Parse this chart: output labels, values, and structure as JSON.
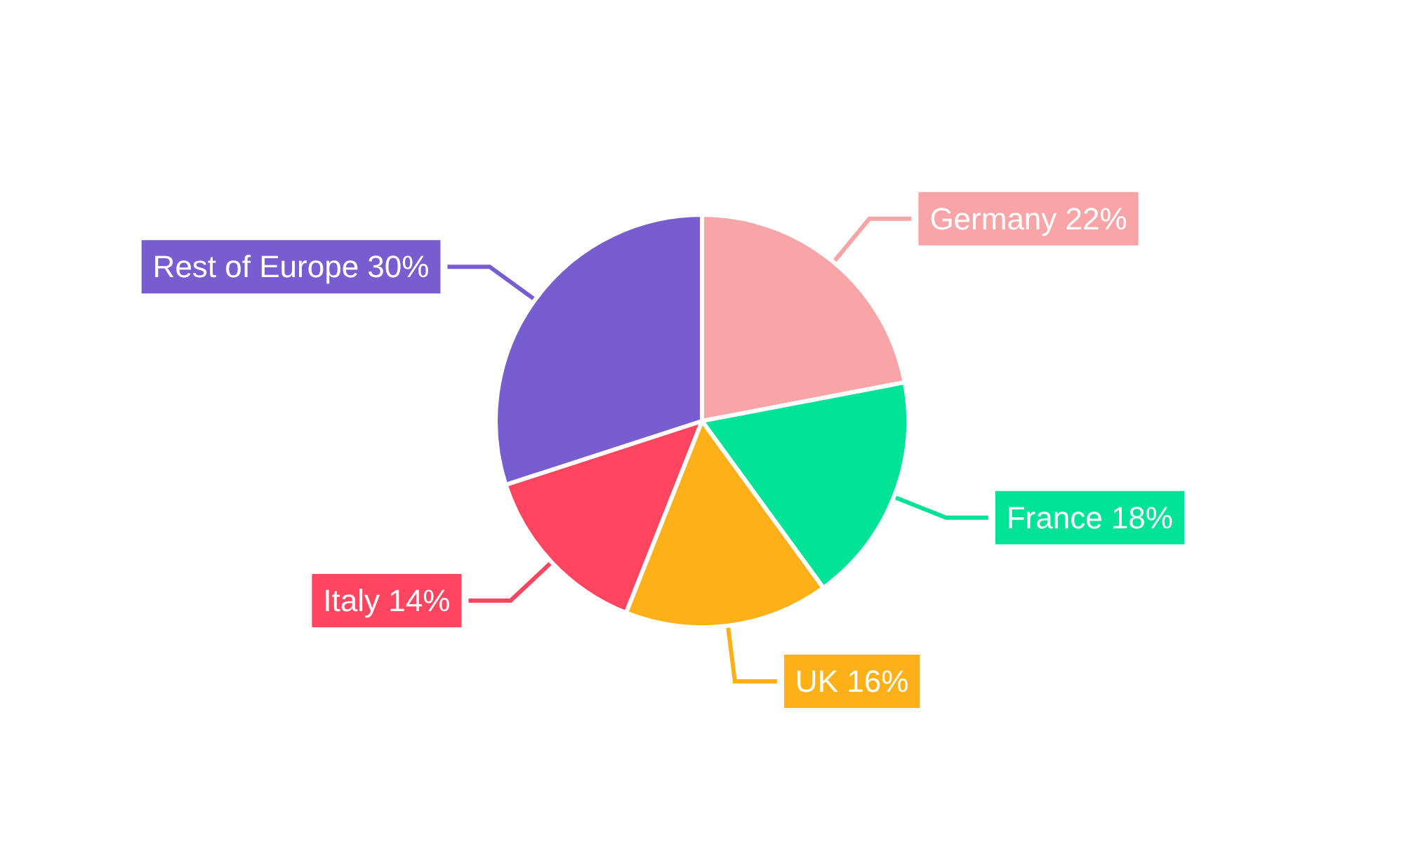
{
  "chart_data": {
    "type": "pie",
    "categories": [
      "Germany",
      "France",
      "UK",
      "Italy",
      "Rest of Europe"
    ],
    "values": [
      22,
      18,
      16,
      14,
      30
    ],
    "value_labels": [
      "22%",
      "18%",
      "16%",
      "14%",
      "30%"
    ],
    "colors": [
      "#f9a5a7",
      "#00e396",
      "#feb019",
      "#ff4560",
      "#775dd0"
    ],
    "legend": false
  }
}
